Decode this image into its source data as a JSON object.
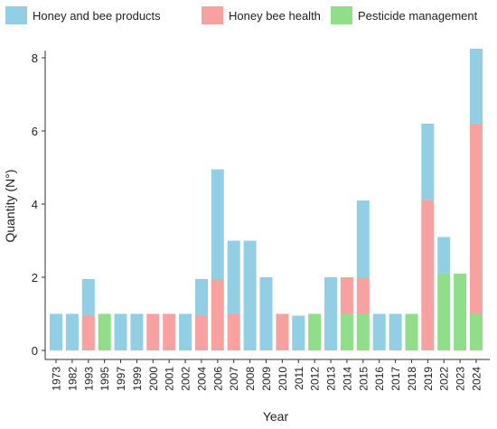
{
  "chart_data": {
    "type": "bar",
    "stacked": true,
    "title": "",
    "xlabel": "Year",
    "ylabel": "Quantity (N°)",
    "ylim": [
      0,
      8.3
    ],
    "yticks": [
      0,
      2,
      4,
      6,
      8
    ],
    "legend_position": "top",
    "grid": false,
    "categories": [
      "1973",
      "1982",
      "1993",
      "1995",
      "1997",
      "1999",
      "2000",
      "2001",
      "2002",
      "2004",
      "2006",
      "2007",
      "2008",
      "2009",
      "2010",
      "2011",
      "2012",
      "2013",
      "2014",
      "2015",
      "2016",
      "2017",
      "2018",
      "2019",
      "2022",
      "2023",
      "2024"
    ],
    "series": [
      {
        "name": "Pesticide management",
        "color": "#90dd8a",
        "values": [
          0,
          0,
          0,
          1,
          0,
          0,
          0,
          0,
          0,
          0,
          0,
          0,
          0,
          0,
          0,
          0,
          1,
          0,
          1,
          1,
          0,
          0,
          1,
          0,
          2.1,
          2.1,
          1
        ]
      },
      {
        "name": "Honey bee health",
        "color": "#f7a1a1",
        "values": [
          0,
          0,
          0.95,
          0,
          0,
          0,
          1,
          1,
          0,
          0.95,
          1.95,
          1,
          0,
          0,
          1,
          0,
          0,
          0,
          1,
          1,
          0,
          0,
          0,
          4.1,
          0,
          0,
          5.2
        ]
      },
      {
        "name": "Honey and bee products",
        "color": "#92cfe4",
        "values": [
          1,
          1,
          1,
          0,
          1,
          1,
          0,
          0,
          1,
          1,
          3,
          2,
          3,
          2,
          0,
          0.95,
          0,
          2,
          0,
          2.1,
          1,
          1,
          0,
          2.1,
          1,
          0,
          2.05
        ]
      }
    ]
  }
}
